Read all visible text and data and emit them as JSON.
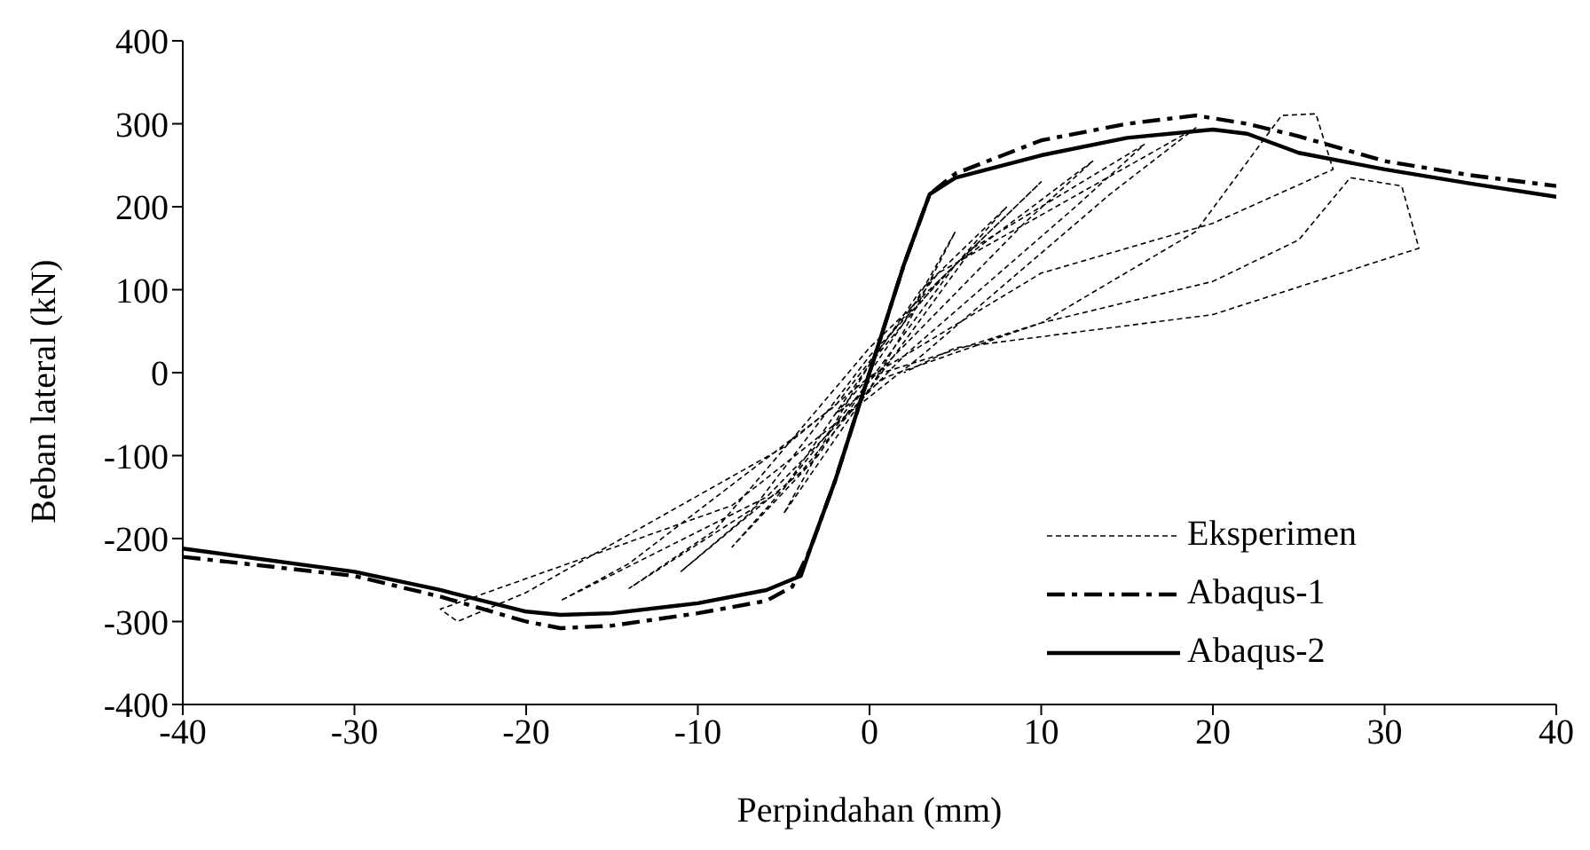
{
  "chart_data": {
    "type": "line",
    "xlabel": "Perpindahan (mm)",
    "ylabel": "Beban lateral (kN)",
    "xlim": [
      -40,
      40
    ],
    "xticks": [
      -40,
      -30,
      -20,
      -10,
      0,
      10,
      20,
      30,
      40
    ],
    "ylim": [
      -400,
      400
    ],
    "yticks": [
      -400,
      -300,
      -200,
      -100,
      0,
      100,
      200,
      300,
      400
    ],
    "grid": false,
    "legend": "bottom right",
    "marker": "none",
    "series": [
      {
        "name": "Eksperimen",
        "color": "#000000",
        "line_style": "dotted",
        "x": [
          0,
          2,
          5,
          2,
          0,
          -2,
          -5,
          -2,
          0,
          3,
          8,
          5,
          0,
          -3,
          -8,
          -5,
          0,
          4,
          10,
          6,
          0,
          -4,
          -11,
          -7,
          0,
          5,
          13,
          9,
          0,
          -5,
          -14,
          -9,
          0,
          6,
          16,
          12,
          2,
          -6,
          -18,
          -14,
          -2,
          4,
          19,
          14,
          3,
          -8,
          -25,
          -24,
          -20,
          -5,
          0,
          10,
          19,
          24,
          26,
          27,
          20,
          10,
          0,
          -2,
          1,
          10,
          20,
          25,
          28,
          31,
          32,
          20,
          5,
          2
        ],
        "values": [
          0,
          60,
          170,
          50,
          -20,
          -80,
          -170,
          -60,
          10,
          100,
          200,
          130,
          -10,
          -100,
          -210,
          -140,
          10,
          110,
          230,
          150,
          -20,
          -120,
          -240,
          -170,
          20,
          130,
          255,
          180,
          -10,
          -140,
          -260,
          -190,
          30,
          150,
          275,
          200,
          20,
          -150,
          -275,
          -230,
          -40,
          120,
          295,
          215,
          20,
          -160,
          -285,
          -300,
          -265,
          -90,
          -5,
          60,
          170,
          310,
          312,
          245,
          180,
          120,
          -5,
          -50,
          -5,
          60,
          110,
          160,
          235,
          225,
          150,
          70,
          30,
          0
        ]
      },
      {
        "name": "Abaqus-1",
        "color": "#000000",
        "line_style": "dashed",
        "x": [
          -40,
          -30,
          -25,
          -20,
          -18,
          -15,
          -10,
          -6,
          -4.5,
          -3.5,
          -2,
          0,
          2,
          3.5,
          5,
          10,
          15,
          19,
          22,
          25,
          30,
          35,
          40
        ],
        "values": [
          -222,
          -245,
          -270,
          -300,
          -308,
          -305,
          -290,
          -275,
          -258,
          -215,
          -130,
          0,
          130,
          215,
          240,
          280,
          300,
          310,
          300,
          285,
          255,
          238,
          225
        ]
      },
      {
        "name": "Abaqus-2",
        "color": "#000000",
        "line_style": "solid",
        "x": [
          -40,
          -30,
          -25,
          -20,
          -18,
          -15,
          -10,
          -6,
          -4,
          -3.5,
          -2,
          0,
          2,
          3.5,
          5,
          10,
          15,
          20,
          22,
          25,
          30,
          35,
          40
        ],
        "values": [
          -212,
          -240,
          -262,
          -288,
          -292,
          -290,
          -278,
          -262,
          -245,
          -215,
          -130,
          0,
          130,
          215,
          235,
          262,
          283,
          293,
          288,
          265,
          245,
          228,
          212
        ]
      }
    ]
  }
}
